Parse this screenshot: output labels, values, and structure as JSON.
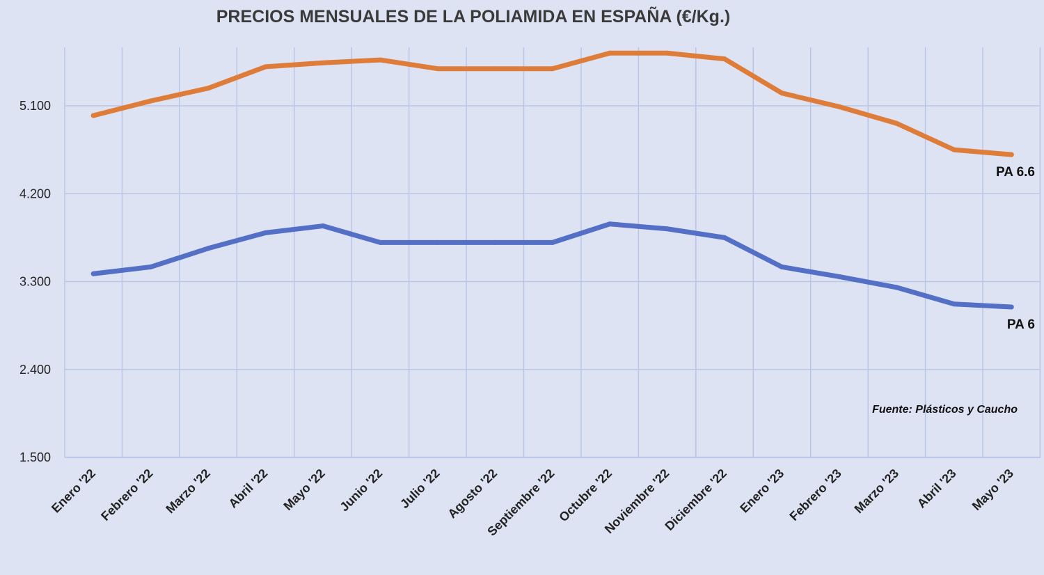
{
  "chart_data": {
    "type": "line",
    "title": "PRECIOS MENSUALES DE LA POLIAMIDA EN ESPAÑA (€/Kg.)",
    "xlabel": "",
    "ylabel": "",
    "categories": [
      "Enero '22",
      "Febrero '22",
      "Marzo '22",
      "Abril '22",
      "Mayo '22",
      "Junio '22",
      "Julio '22",
      "Agosto '22",
      "Septiembre '22",
      "Octubre '22",
      "Noviembre '22",
      "Diciembre '22",
      "Enero '23",
      "Febrero '23",
      "Marzo '23",
      "Abril '23",
      "Mayo '23"
    ],
    "ylim": [
      1500,
      5700
    ],
    "yticks": [
      1500,
      2400,
      3300,
      4200,
      5100
    ],
    "ytick_labels": [
      "1.500",
      "2.400",
      "3.300",
      "4.200",
      "5.100"
    ],
    "grid": true,
    "series": [
      {
        "name": "PA 6.6",
        "color": "#de7d3a",
        "values": [
          5000,
          5150,
          5280,
          5500,
          5540,
          5570,
          5480,
          5480,
          5480,
          5640,
          5640,
          5580,
          5230,
          5090,
          4920,
          4650,
          4600
        ]
      },
      {
        "name": "PA 6",
        "color": "#5470c6",
        "values": [
          3380,
          3450,
          3640,
          3800,
          3870,
          3700,
          3700,
          3700,
          3700,
          3890,
          3840,
          3750,
          3450,
          3350,
          3240,
          3070,
          3040
        ]
      }
    ],
    "annotation": "Fuente: Plásticos y Caucho"
  }
}
